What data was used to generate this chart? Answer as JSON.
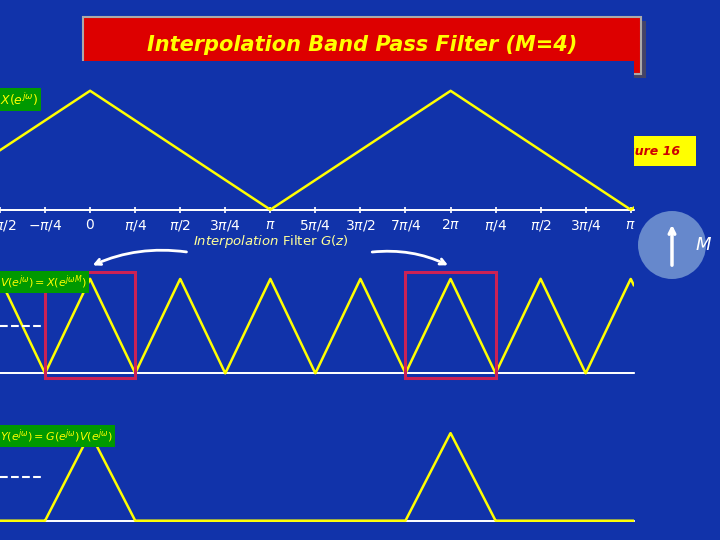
{
  "title": "Interpolation Band Pass Filter (M=4)",
  "bg_color": "#1133aa",
  "title_bg": "#dd0000",
  "title_color": "#ffff00",
  "signal_color": "#ffff00",
  "axis_color": "#ffffff",
  "tick_color": "#ffff99",
  "filter_box_color": "#cc2255",
  "dashed_color": "#ffffff",
  "annotation_color": "#ffff99",
  "figure16_bg": "#ffff00",
  "figure16_text": "#cc0000",
  "label_bg": "#009900",
  "M_circle_color": "#6688cc",
  "shadow_color": "#444466"
}
